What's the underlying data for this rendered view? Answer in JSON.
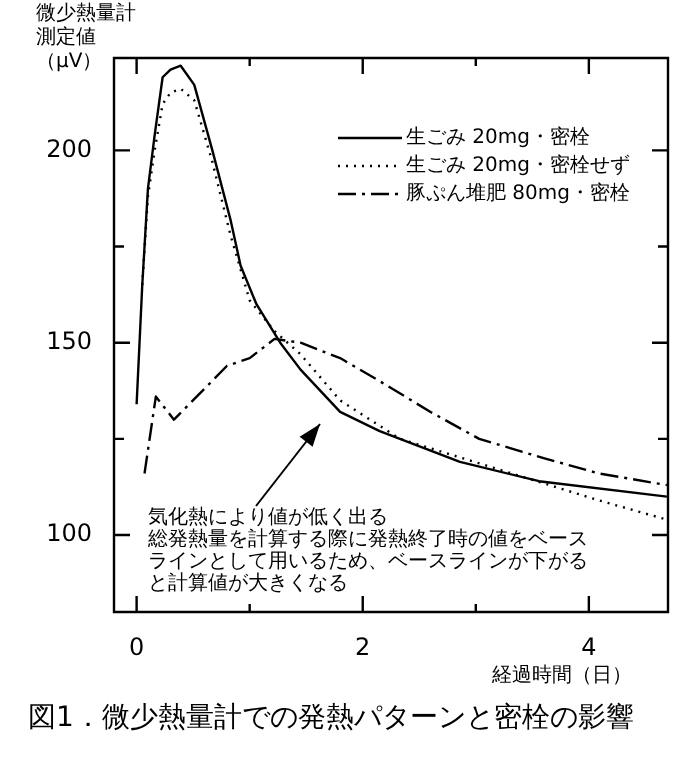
{
  "chart_data": {
    "type": "line",
    "title": "図1．微少熱量計での発熱パターンと密栓の影響",
    "xlabel": "経過時間（日）",
    "ylabel": "微少熱量計測定値（μV）",
    "xlim": [
      -0.2,
      4.7
    ],
    "xticks": [
      0,
      {
        "value": 1,
        "label": null
      },
      2,
      {
        "value": 3,
        "label": null
      },
      4
    ],
    "ylim": [
      80,
      224
    ],
    "yticks": [
      100,
      {
        "value": 125,
        "label": null
      },
      150,
      {
        "value": 175,
        "label": null
      },
      200
    ],
    "grid": false,
    "legend": "top right",
    "marker": "none",
    "series": [
      {
        "name": "生ごみ 20mg・密栓",
        "color": "#000000",
        "line_style": "solid",
        "x": [
          0,
          0.05,
          0.1,
          0.16,
          0.23,
          0.3,
          0.39,
          0.51,
          0.67,
          0.83,
          0.92,
          1.06,
          1.27,
          1.45,
          1.8,
          2.15,
          2.86,
          3.56,
          4.69
        ],
        "values": [
          134,
          165,
          190,
          204,
          219,
          221,
          222,
          217,
          200,
          182,
          170,
          160,
          150,
          143,
          132,
          127,
          119,
          114,
          110
        ]
      },
      {
        "name": "生ごみ 20mg・密栓せず",
        "color": "#000000",
        "line_style": "dotted",
        "x": [
          0.05,
          0.1,
          0.16,
          0.23,
          0.3,
          0.39,
          0.51,
          0.67,
          0.83,
          1.0,
          1.22,
          1.45,
          1.8,
          2.33,
          3.21,
          4.09,
          4.69
        ],
        "values": [
          165,
          188,
          200,
          212,
          215,
          216,
          213,
          197,
          178,
          161,
          153,
          147,
          135,
          125,
          117,
          109,
          104
        ]
      },
      {
        "name": "豚ぷん堆肥 80mg・密栓",
        "color": "#000000",
        "line_style": "dashed",
        "x": [
          0.07,
          0.17,
          0.33,
          0.6,
          0.8,
          1.0,
          1.22,
          1.45,
          1.8,
          2.15,
          2.6,
          3.03,
          3.6,
          4.09,
          4.69
        ],
        "values": [
          116,
          136,
          130,
          138,
          144,
          146,
          151,
          150,
          146,
          140,
          132,
          125,
          120,
          116,
          113
        ]
      }
    ],
    "annotations": [
      "気化熱により値が低く出る",
      "総発熱量を計算する際に発熱終了時の値をベースラインとして用いるため、ベースラインが下がると計算値が大きくなる"
    ]
  }
}
